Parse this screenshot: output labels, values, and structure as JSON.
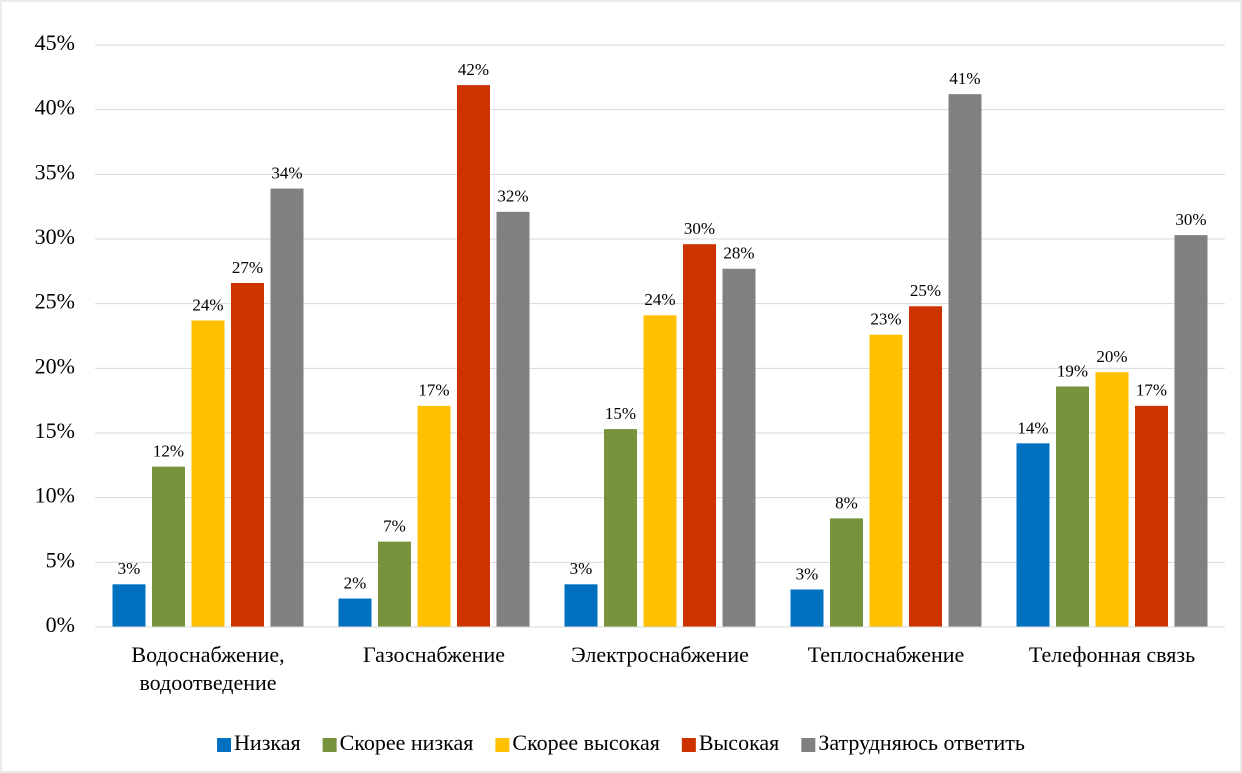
{
  "chart_data": {
    "type": "bar",
    "categories": [
      "Водоснабжение, водоотведение",
      "Газоснабжение",
      "Электроснабжение",
      "Теплоснабжение",
      "Телефонная связь"
    ],
    "series": [
      {
        "name": "Низкая",
        "color": "#0070c0",
        "values": [
          3.3,
          2.2,
          3.3,
          2.9,
          14.2
        ],
        "value_labels": [
          "3%",
          "2%",
          "3%",
          "3%",
          "14%"
        ]
      },
      {
        "name": "Скорее низкая",
        "color": "#77933c",
        "values": [
          12.4,
          6.6,
          15.3,
          8.4,
          18.6
        ],
        "value_labels": [
          "12%",
          "7%",
          "15%",
          "8%",
          "19%"
        ]
      },
      {
        "name": "Скорее высокая",
        "color": "#ffc000",
        "values": [
          23.7,
          17.1,
          24.1,
          22.6,
          19.7
        ],
        "value_labels": [
          "24%",
          "17%",
          "24%",
          "23%",
          "20%"
        ]
      },
      {
        "name": "Высокая",
        "color": "#cc3300",
        "values": [
          26.6,
          41.9,
          29.6,
          24.8,
          17.1
        ],
        "value_labels": [
          "27%",
          "42%",
          "30%",
          "25%",
          "17%"
        ]
      },
      {
        "name": "Затрудняюсь ответить",
        "color": "#808080",
        "values": [
          33.9,
          32.1,
          27.7,
          41.2,
          30.3
        ],
        "value_labels": [
          "34%",
          "32%",
          "28%",
          "41%",
          "30%"
        ]
      }
    ],
    "ylim": [
      0,
      45
    ],
    "yticks": [
      {
        "value": 0,
        "label": "0%"
      },
      {
        "value": 5,
        "label": "5%"
      },
      {
        "value": 10,
        "label": "10%"
      },
      {
        "value": 15,
        "label": "15%"
      },
      {
        "value": 20,
        "label": "20%"
      },
      {
        "value": 25,
        "label": "25%"
      },
      {
        "value": 30,
        "label": "30%"
      },
      {
        "value": 35,
        "label": "35%"
      },
      {
        "value": 40,
        "label": "40%"
      },
      {
        "value": 45,
        "label": "45%"
      }
    ],
    "grid": true,
    "legend": "bottom"
  }
}
